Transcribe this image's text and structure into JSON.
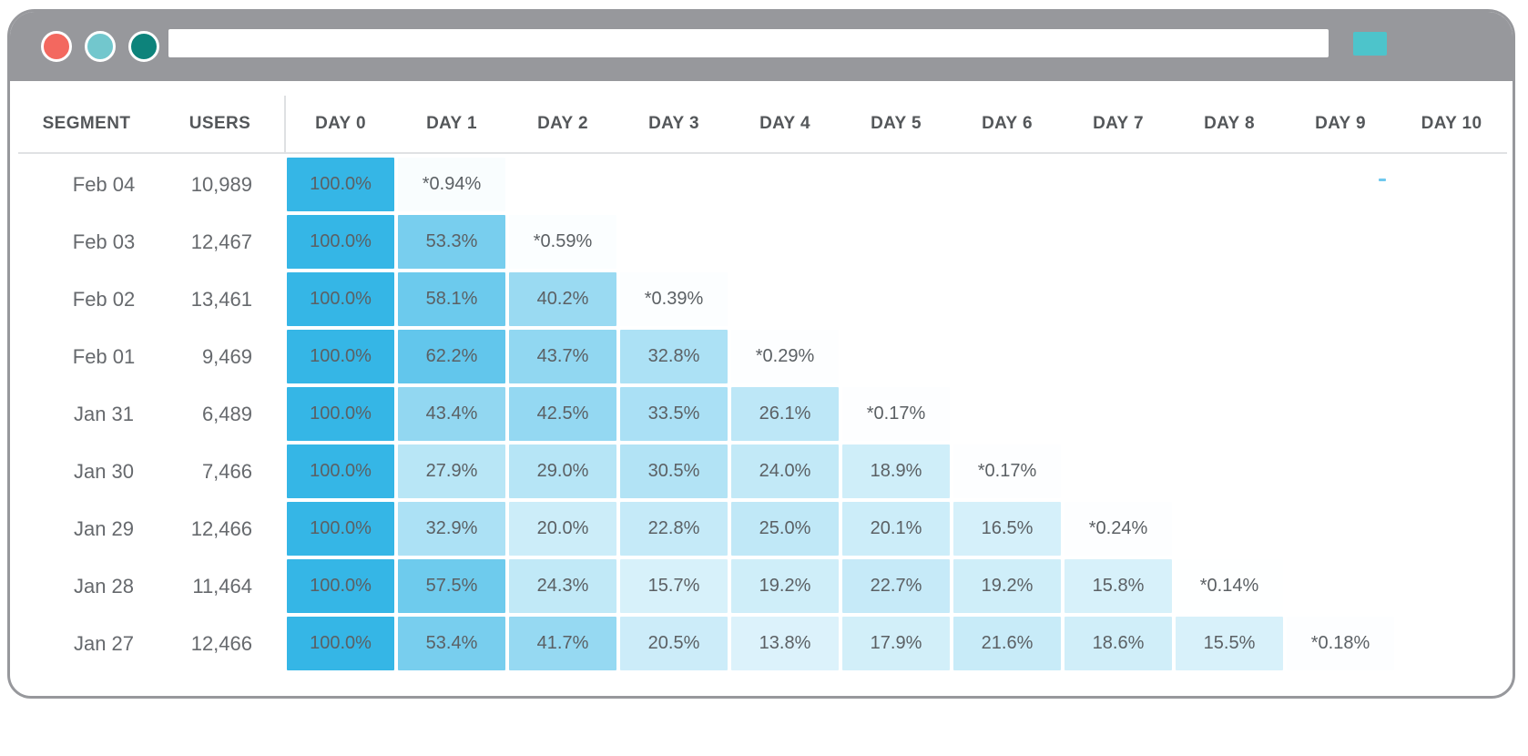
{
  "window": {
    "chrome_color": "#97989c",
    "traffic_lights": [
      {
        "name": "close",
        "color": "#f3685f"
      },
      {
        "name": "minimize",
        "color": "#72c7cd"
      },
      {
        "name": "zoom",
        "color": "#0d837b"
      }
    ],
    "url_bar": {
      "value": "",
      "placeholder": ""
    },
    "action_button_color": "#4dc4cb"
  },
  "table": {
    "columns": [
      "SEGMENT",
      "USERS",
      "DAY 0",
      "DAY 1",
      "DAY 2",
      "DAY 3",
      "DAY 4",
      "DAY 5",
      "DAY 6",
      "DAY 7",
      "DAY 8",
      "DAY 9",
      "DAY 10"
    ],
    "cell_base_color": "#35b6e6",
    "rows": [
      {
        "segment": "Feb 04",
        "users": "10,989",
        "cells": [
          "100.0%",
          "*0.94%"
        ]
      },
      {
        "segment": "Feb 03",
        "users": "12,467",
        "cells": [
          "100.0%",
          "53.3%",
          "*0.59%"
        ]
      },
      {
        "segment": "Feb 02",
        "users": "13,461",
        "cells": [
          "100.0%",
          "58.1%",
          "40.2%",
          "*0.39%"
        ]
      },
      {
        "segment": "Feb 01",
        "users": "9,469",
        "cells": [
          "100.0%",
          "62.2%",
          "43.7%",
          "32.8%",
          "*0.29%"
        ]
      },
      {
        "segment": "Jan 31",
        "users": "6,489",
        "cells": [
          "100.0%",
          "43.4%",
          "42.5%",
          "33.5%",
          "26.1%",
          "*0.17%"
        ]
      },
      {
        "segment": "Jan 30",
        "users": "7,466",
        "cells": [
          "100.0%",
          "27.9%",
          "29.0%",
          "30.5%",
          "24.0%",
          "18.9%",
          "*0.17%"
        ]
      },
      {
        "segment": "Jan 29",
        "users": "12,466",
        "cells": [
          "100.0%",
          "32.9%",
          "20.0%",
          "22.8%",
          "25.0%",
          "20.1%",
          "16.5%",
          "*0.24%"
        ]
      },
      {
        "segment": "Jan 28",
        "users": "11,464",
        "cells": [
          "100.0%",
          "57.5%",
          "24.3%",
          "15.7%",
          "19.2%",
          "22.7%",
          "19.2%",
          "15.8%",
          "*0.14%"
        ]
      },
      {
        "segment": "Jan 27",
        "users": "12,466",
        "cells": [
          "100.0%",
          "53.4%",
          "41.7%",
          "20.5%",
          "13.8%",
          "17.9%",
          "21.6%",
          "18.6%",
          "15.5%",
          "*0.18%"
        ]
      }
    ]
  },
  "chart_data": {
    "type": "heatmap",
    "columns": [
      "DAY 0",
      "DAY 1",
      "DAY 2",
      "DAY 3",
      "DAY 4",
      "DAY 5",
      "DAY 6",
      "DAY 7",
      "DAY 8",
      "DAY 9",
      "DAY 10"
    ],
    "row_labels": [
      "Feb 04",
      "Feb 03",
      "Feb 02",
      "Feb 01",
      "Jan 31",
      "Jan 30",
      "Jan 29",
      "Jan 28",
      "Jan 27"
    ],
    "users": [
      10989,
      12467,
      13461,
      9469,
      6489,
      7466,
      12466,
      11464,
      12466
    ],
    "values": [
      [
        100.0,
        0.94
      ],
      [
        100.0,
        53.3,
        0.59
      ],
      [
        100.0,
        58.1,
        40.2,
        0.39
      ],
      [
        100.0,
        62.2,
        43.7,
        32.8,
        0.29
      ],
      [
        100.0,
        43.4,
        42.5,
        33.5,
        26.1,
        0.17
      ],
      [
        100.0,
        27.9,
        29.0,
        30.5,
        24.0,
        18.9,
        0.17
      ],
      [
        100.0,
        32.9,
        20.0,
        22.8,
        25.0,
        20.1,
        16.5,
        0.24
      ],
      [
        100.0,
        57.5,
        24.3,
        15.7,
        19.2,
        22.7,
        19.2,
        15.8,
        0.14
      ],
      [
        100.0,
        53.4,
        41.7,
        20.5,
        13.8,
        17.9,
        21.6,
        18.6,
        15.5,
        0.18
      ]
    ],
    "value_format": "percent",
    "partial_day_marker": "*",
    "color_scale_base": "#35b6e6",
    "legend": "none",
    "grid": "off"
  }
}
